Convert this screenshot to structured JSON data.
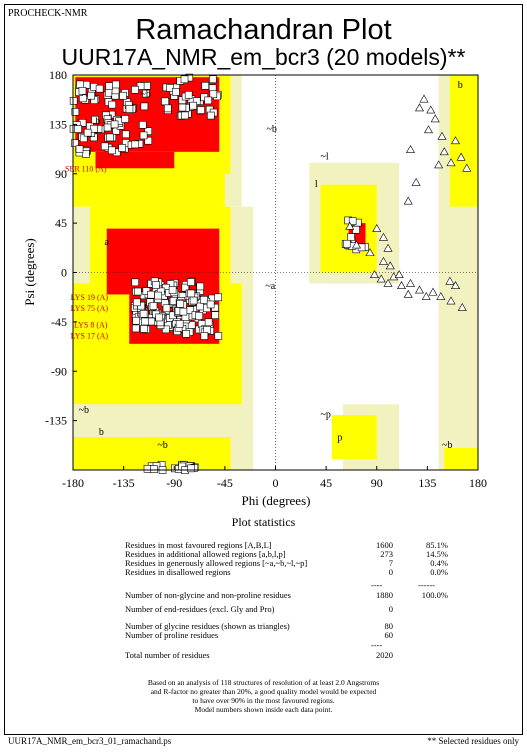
{
  "header": {
    "program": "PROCHECK-NMR",
    "title": "Ramachandran Plot",
    "subtitle": "UUR17A_NMR_em_bcr3 (20 models)**"
  },
  "chart_data": {
    "type": "scatter",
    "title": "Ramachandran Plot",
    "xlabel": "Phi (degrees)",
    "ylabel": "Psi (degrees)",
    "xlim": [
      -180,
      180
    ],
    "ylim": [
      -180,
      180
    ],
    "x_ticks": [
      "-180",
      "-135",
      "-90",
      "-45",
      "0",
      "45",
      "90",
      "135",
      "180"
    ],
    "y_ticks": [
      "180",
      "135",
      "90",
      "45",
      "0",
      "-45",
      "-90",
      "-135"
    ],
    "region_labels": [
      "b",
      "b",
      "~b",
      "~b",
      "~l",
      "l",
      "a",
      "~a",
      "~b",
      "b",
      "~b",
      "~p",
      "p",
      "~b"
    ],
    "region_colors": {
      "most_favoured": "#ff0000",
      "additional_allowed": "#ffff00",
      "generously_allowed": "#f2f2c1",
      "disallowed": "#ffffff"
    },
    "highlighted_residues": [
      "SER 110 (A)",
      "LYS 19 (A)",
      "LYS 75 (A)",
      "LYS 8 (A)",
      "LYS 17 (A)"
    ],
    "glycine_points": [
      {
        "x": 128,
        "y": 150
      },
      {
        "x": 132,
        "y": 158
      },
      {
        "x": 138,
        "y": 148
      },
      {
        "x": 142,
        "y": 140
      },
      {
        "x": 136,
        "y": 130
      },
      {
        "x": 148,
        "y": 124
      },
      {
        "x": 150,
        "y": 110
      },
      {
        "x": 156,
        "y": 100
      },
      {
        "x": 145,
        "y": 98
      },
      {
        "x": 160,
        "y": 120
      },
      {
        "x": 165,
        "y": 105
      },
      {
        "x": 170,
        "y": 95
      },
      {
        "x": 120,
        "y": 112
      },
      {
        "x": 125,
        "y": 82
      },
      {
        "x": 118,
        "y": 65
      },
      {
        "x": 90,
        "y": 40
      },
      {
        "x": 96,
        "y": 32
      },
      {
        "x": 100,
        "y": 22
      },
      {
        "x": 84,
        "y": 18
      },
      {
        "x": 72,
        "y": 25
      },
      {
        "x": 66,
        "y": 42
      },
      {
        "x": 88,
        "y": -2
      },
      {
        "x": 94,
        "y": -6
      },
      {
        "x": 100,
        "y": -10
      },
      {
        "x": 105,
        "y": -4
      },
      {
        "x": 112,
        "y": -12
      },
      {
        "x": 120,
        "y": -10
      },
      {
        "x": 118,
        "y": -20
      },
      {
        "x": 128,
        "y": -16
      },
      {
        "x": 134,
        "y": -22
      },
      {
        "x": 140,
        "y": -18
      },
      {
        "x": 147,
        "y": -22
      },
      {
        "x": 155,
        "y": -8
      },
      {
        "x": 160,
        "y": -12
      },
      {
        "x": 156,
        "y": -26
      },
      {
        "x": 166,
        "y": -32
      },
      {
        "x": 110,
        "y": -2
      },
      {
        "x": 102,
        "y": 6
      },
      {
        "x": 96,
        "y": 10
      }
    ]
  },
  "stats": {
    "heading": "Plot statistics",
    "rows": [
      {
        "label": "Residues in most favoured regions  [A,B,L]",
        "count": "1600",
        "pct": "85.1%"
      },
      {
        "label": "Residues in additional allowed regions  [a,b,l,p]",
        "count": "273",
        "pct": "14.5%"
      },
      {
        "label": "Residues in generously allowed regions  [~a,~b,~l,~p]",
        "count": "7",
        "pct": "0.4%"
      },
      {
        "label": "Residues in disallowed regions",
        "count": "0",
        "pct": "0.0%"
      },
      {
        "label": "Number of non-glycine and non-proline residues",
        "count": "1880",
        "pct": "100.0%"
      },
      {
        "label": "Number of end-residues (excl. Gly and Pro)",
        "count": "0",
        "pct": ""
      },
      {
        "label": "Number of glycine residues (shown as triangles)",
        "count": "80",
        "pct": ""
      },
      {
        "label": "Number of proline residues",
        "count": "60",
        "pct": ""
      },
      {
        "label": "Total number of residues",
        "count": "2020",
        "pct": ""
      }
    ],
    "rule_short": "----",
    "rule_long": "------",
    "notes": [
      "Based on an analysis of 118 structures of resolution of at least 2.0 Angstroms",
      "and R-factor no greater than 20%, a good quality model would be expected",
      "to have over 90% in the most favoured regions.",
      "Model numbers shown inside each data point."
    ]
  },
  "footer": {
    "file": "UUR17A_NMR_em_bcr3_01_ramachand.ps",
    "note": "** Selected residues only"
  }
}
